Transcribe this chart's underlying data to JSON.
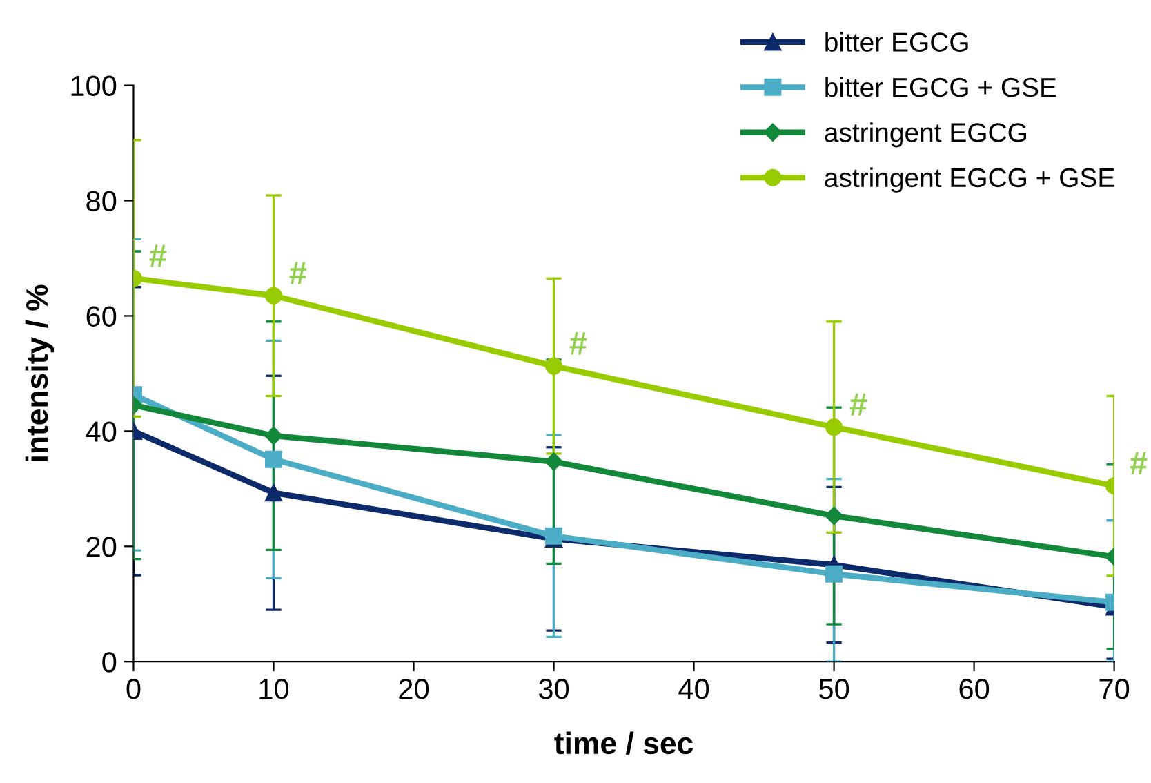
{
  "chart_data": {
    "type": "line",
    "xlabel": "time / sec",
    "ylabel": "intensity / %",
    "x": [
      0,
      10,
      30,
      50,
      70
    ],
    "series": [
      {
        "name": "bitter EGCG",
        "color": "#0d2a6b",
        "marker": "triangle",
        "values": [
          40,
          29.3,
          21.3,
          16.8,
          9.5
        ],
        "errors": [
          25,
          20.3,
          15.9,
          13.5,
          9
        ]
      },
      {
        "name": "bitter EGCG + GSE",
        "color": "#4bacc6",
        "marker": "square",
        "values": [
          46.3,
          35.1,
          21.8,
          15.2,
          10.3
        ],
        "errors": [
          27,
          20.6,
          17.5,
          [
            0,
            31.7
          ],
          [
            0,
            24.5
          ]
        ]
      },
      {
        "name": "astringent EGCG",
        "color": "#13883a",
        "marker": "diamond",
        "values": [
          44.5,
          39.2,
          34.7,
          25.3,
          18.2
        ],
        "errors": [
          26.7,
          19.8,
          17.7,
          18.8,
          16
        ]
      },
      {
        "name": "astringent EGCG + GSE",
        "color": "#99cc00",
        "marker": "circle",
        "values": [
          66.5,
          63.5,
          51.3,
          40.7,
          30.5
        ],
        "errors": [
          24,
          17.4,
          15.2,
          18.3,
          15.6
        ]
      }
    ],
    "annotations": [
      {
        "text": "#",
        "x": 0,
        "y": 66.5
      },
      {
        "text": "#",
        "x": 10,
        "y": 63.5
      },
      {
        "text": "#",
        "x": 30,
        "y": 51.3
      },
      {
        "text": "#",
        "x": 50,
        "y": 40.7
      },
      {
        "text": "#",
        "x": 70,
        "y": 30.5
      }
    ],
    "xlim": [
      0,
      70
    ],
    "xticks": [
      0,
      10,
      20,
      30,
      40,
      50,
      60,
      70
    ],
    "ylim": [
      0,
      100
    ],
    "yticks": [
      0,
      20,
      40,
      60,
      80,
      100
    ],
    "grid": false,
    "legend": "top right",
    "line_style": "solid"
  }
}
